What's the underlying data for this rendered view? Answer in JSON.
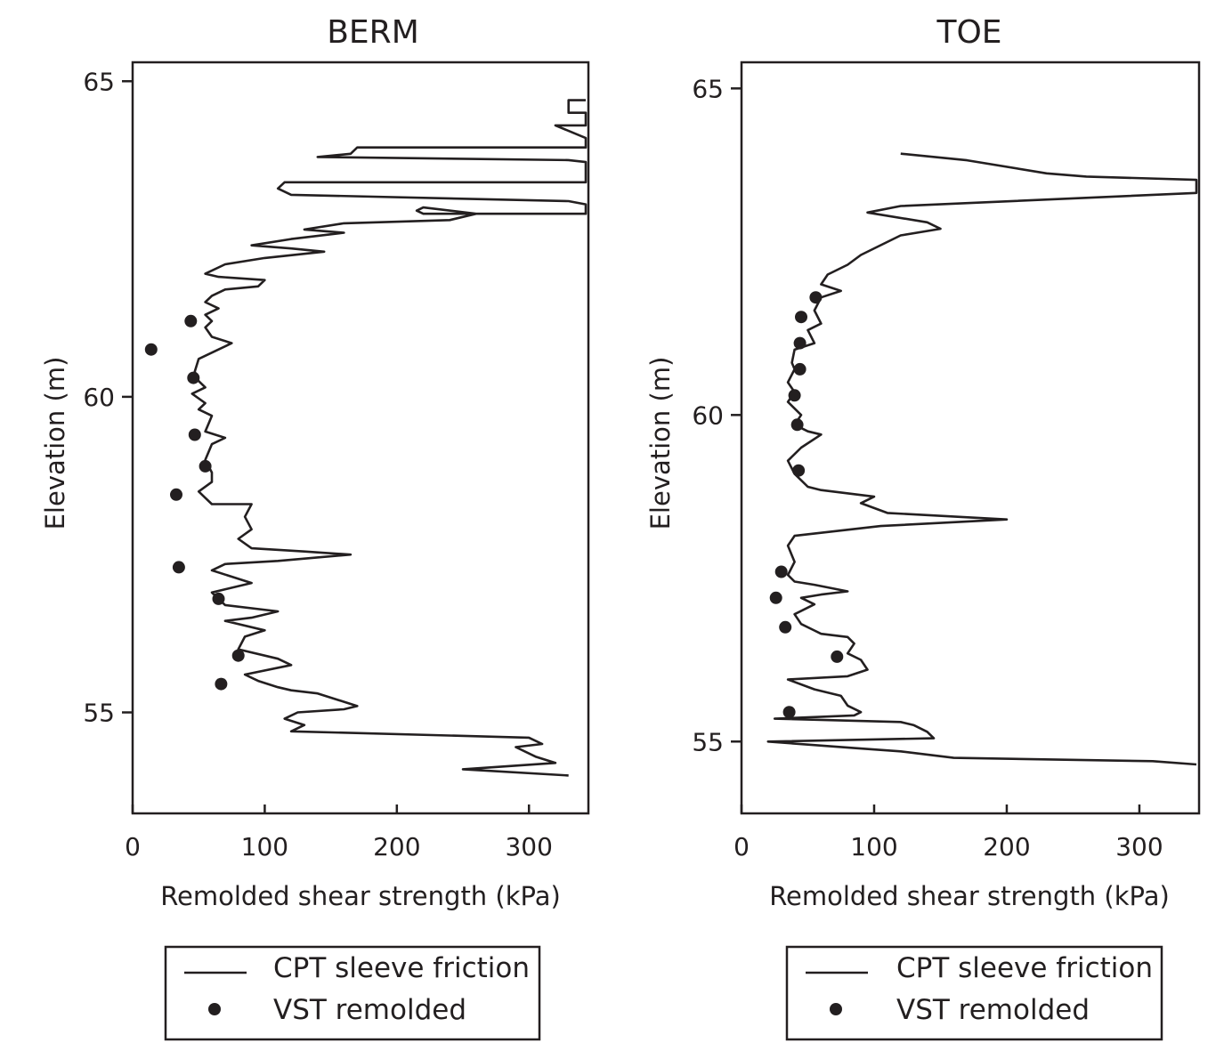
{
  "chart_data": [
    {
      "type": "line",
      "title": "BERM",
      "xlabel": "Remolded shear strength (kPa)",
      "ylabel": "Elevation (m)",
      "xlim": [
        0,
        345
      ],
      "ylim": [
        53.4,
        65.3
      ],
      "xticks": [
        0,
        100,
        200,
        300
      ],
      "yticks": [
        55,
        60,
        65
      ],
      "grid": false,
      "legend": {
        "placement": "bottom",
        "entries": [
          "CPT sleeve friction",
          "VST remolded"
        ]
      },
      "series": [
        {
          "name": "CPT sleeve friction",
          "kind": "line",
          "points": [
            [
              343,
              64.7
            ],
            [
              330,
              64.7
            ],
            [
              330,
              64.5
            ],
            [
              343,
              64.5
            ],
            [
              343,
              64.3
            ],
            [
              320,
              64.3
            ],
            [
              343,
              64.1
            ],
            [
              343,
              63.95
            ],
            [
              170,
              63.95
            ],
            [
              165,
              63.85
            ],
            [
              140,
              63.8
            ],
            [
              330,
              63.75
            ],
            [
              343,
              63.72
            ],
            [
              343,
              63.4
            ],
            [
              115,
              63.4
            ],
            [
              110,
              63.3
            ],
            [
              120,
              63.2
            ],
            [
              330,
              63.1
            ],
            [
              343,
              63.05
            ],
            [
              343,
              62.9
            ],
            [
              220,
              62.9
            ],
            [
              215,
              62.95
            ],
            [
              220,
              63.0
            ],
            [
              260,
              62.9
            ],
            [
              240,
              62.8
            ],
            [
              160,
              62.75
            ],
            [
              130,
              62.65
            ],
            [
              160,
              62.6
            ],
            [
              120,
              62.5
            ],
            [
              90,
              62.4
            ],
            [
              120,
              62.35
            ],
            [
              145,
              62.3
            ],
            [
              100,
              62.2
            ],
            [
              70,
              62.1
            ],
            [
              55,
              61.95
            ],
            [
              65,
              61.9
            ],
            [
              100,
              61.85
            ],
            [
              95,
              61.75
            ],
            [
              70,
              61.7
            ],
            [
              60,
              61.6
            ],
            [
              55,
              61.5
            ],
            [
              65,
              61.4
            ],
            [
              55,
              61.3
            ],
            [
              60,
              61.2
            ],
            [
              55,
              61.1
            ],
            [
              60,
              60.95
            ],
            [
              75,
              60.85
            ],
            [
              65,
              60.75
            ],
            [
              50,
              60.6
            ],
            [
              47,
              60.4
            ],
            [
              50,
              60.25
            ],
            [
              55,
              60.15
            ],
            [
              45,
              60.05
            ],
            [
              55,
              59.9
            ],
            [
              50,
              59.8
            ],
            [
              60,
              59.7
            ],
            [
              58,
              59.6
            ],
            [
              55,
              59.45
            ],
            [
              70,
              59.35
            ],
            [
              60,
              59.25
            ],
            [
              55,
              59.0
            ],
            [
              60,
              58.8
            ],
            [
              60,
              58.65
            ],
            [
              50,
              58.5
            ],
            [
              55,
              58.4
            ],
            [
              60,
              58.3
            ],
            [
              90,
              58.3
            ],
            [
              85,
              58.1
            ],
            [
              90,
              57.9
            ],
            [
              80,
              57.75
            ],
            [
              90,
              57.6
            ],
            [
              130,
              57.55
            ],
            [
              165,
              57.5
            ],
            [
              110,
              57.4
            ],
            [
              70,
              57.35
            ],
            [
              60,
              57.25
            ],
            [
              75,
              57.15
            ],
            [
              90,
              57.05
            ],
            [
              60,
              56.9
            ],
            [
              65,
              56.8
            ],
            [
              70,
              56.7
            ],
            [
              110,
              56.6
            ],
            [
              90,
              56.5
            ],
            [
              70,
              56.45
            ],
            [
              100,
              56.3
            ],
            [
              85,
              56.2
            ],
            [
              80,
              56.0
            ],
            [
              110,
              55.85
            ],
            [
              120,
              55.75
            ],
            [
              85,
              55.6
            ],
            [
              95,
              55.5
            ],
            [
              110,
              55.4
            ],
            [
              120,
              55.35
            ],
            [
              140,
              55.3
            ],
            [
              170,
              55.1
            ],
            [
              160,
              55.05
            ],
            [
              125,
              55.0
            ],
            [
              115,
              54.9
            ],
            [
              130,
              54.8
            ],
            [
              120,
              54.7
            ],
            [
              300,
              54.6
            ],
            [
              310,
              54.5
            ],
            [
              290,
              54.45
            ],
            [
              305,
              54.3
            ],
            [
              320,
              54.2
            ],
            [
              250,
              54.1
            ],
            [
              330,
              54.0
            ]
          ]
        },
        {
          "name": "VST remolded",
          "kind": "scatter",
          "points": [
            [
              44,
              61.2
            ],
            [
              14,
              60.75
            ],
            [
              46,
              60.3
            ],
            [
              47,
              59.4
            ],
            [
              55,
              58.9
            ],
            [
              33,
              58.45
            ],
            [
              35,
              57.3
            ],
            [
              65,
              56.8
            ],
            [
              80,
              55.9
            ],
            [
              67,
              55.45
            ]
          ]
        }
      ]
    },
    {
      "type": "line",
      "title": "TOE",
      "xlabel": "Remolded shear strength (kPa)",
      "ylabel": "Elevation (m)",
      "xlim": [
        0,
        345
      ],
      "ylim": [
        53.9,
        65.4
      ],
      "xticks": [
        0,
        100,
        200,
        300
      ],
      "yticks": [
        55,
        60,
        65
      ],
      "grid": false,
      "legend": {
        "placement": "bottom",
        "entries": [
          "CPT sleeve friction",
          "VST remolded"
        ]
      },
      "series": [
        {
          "name": "CPT sleeve friction",
          "kind": "line",
          "points": [
            [
              120,
              64.0
            ],
            [
              170,
              63.9
            ],
            [
              230,
              63.7
            ],
            [
              260,
              63.65
            ],
            [
              343,
              63.6
            ],
            [
              343,
              63.4
            ],
            [
              120,
              63.2
            ],
            [
              95,
              63.1
            ],
            [
              140,
              62.95
            ],
            [
              150,
              62.85
            ],
            [
              120,
              62.75
            ],
            [
              105,
              62.6
            ],
            [
              90,
              62.45
            ],
            [
              80,
              62.3
            ],
            [
              65,
              62.15
            ],
            [
              60,
              62.0
            ],
            [
              75,
              61.9
            ],
            [
              60,
              61.8
            ],
            [
              55,
              61.6
            ],
            [
              60,
              61.4
            ],
            [
              50,
              61.3
            ],
            [
              55,
              61.1
            ],
            [
              40,
              61.0
            ],
            [
              38,
              60.8
            ],
            [
              40,
              60.7
            ],
            [
              35,
              60.5
            ],
            [
              40,
              60.35
            ],
            [
              35,
              60.2
            ],
            [
              45,
              60.0
            ],
            [
              40,
              59.85
            ],
            [
              50,
              59.75
            ],
            [
              60,
              59.7
            ],
            [
              45,
              59.5
            ],
            [
              35,
              59.3
            ],
            [
              40,
              59.1
            ],
            [
              50,
              58.9
            ],
            [
              60,
              58.85
            ],
            [
              100,
              58.75
            ],
            [
              90,
              58.65
            ],
            [
              110,
              58.5
            ],
            [
              200,
              58.4
            ],
            [
              105,
              58.3
            ],
            [
              40,
              58.15
            ],
            [
              35,
              58.0
            ],
            [
              40,
              57.75
            ],
            [
              35,
              57.55
            ],
            [
              40,
              57.45
            ],
            [
              55,
              57.4
            ],
            [
              80,
              57.3
            ],
            [
              60,
              57.25
            ],
            [
              45,
              57.2
            ],
            [
              55,
              57.1
            ],
            [
              40,
              56.95
            ],
            [
              45,
              56.8
            ],
            [
              55,
              56.7
            ],
            [
              60,
              56.65
            ],
            [
              80,
              56.6
            ],
            [
              85,
              56.5
            ],
            [
              80,
              56.35
            ],
            [
              90,
              56.25
            ],
            [
              95,
              56.1
            ],
            [
              80,
              56.0
            ],
            [
              35,
              55.95
            ],
            [
              55,
              55.8
            ],
            [
              75,
              55.7
            ],
            [
              80,
              55.55
            ],
            [
              90,
              55.45
            ],
            [
              85,
              55.4
            ],
            [
              25,
              55.35
            ],
            [
              120,
              55.3
            ],
            [
              130,
              55.25
            ],
            [
              140,
              55.15
            ],
            [
              145,
              55.05
            ],
            [
              20,
              55.0
            ],
            [
              85,
              54.9
            ],
            [
              120,
              54.85
            ],
            [
              160,
              54.75
            ],
            [
              310,
              54.7
            ],
            [
              343,
              54.65
            ]
          ]
        },
        {
          "name": "VST remolded",
          "kind": "scatter",
          "points": [
            [
              56,
              61.8
            ],
            [
              45,
              61.5
            ],
            [
              44,
              61.1
            ],
            [
              44,
              60.7
            ],
            [
              40,
              60.3
            ],
            [
              42,
              59.85
            ],
            [
              43,
              59.15
            ],
            [
              30,
              57.6
            ],
            [
              26,
              57.2
            ],
            [
              33,
              56.75
            ],
            [
              72,
              56.3
            ],
            [
              36,
              55.45
            ]
          ]
        }
      ]
    }
  ]
}
